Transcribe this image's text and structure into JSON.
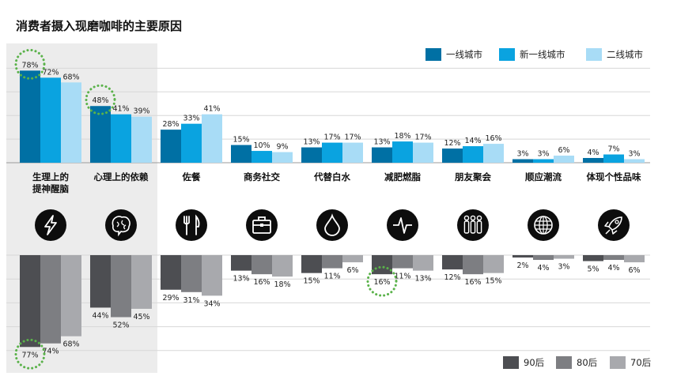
{
  "chart_data": [
    {
      "type": "bar",
      "title": "消费者摄入现磨咖啡的主要原因",
      "categories": [
        "生理上的提神醒脑",
        "心理上的依赖",
        "佐餐",
        "商务社交",
        "代替白水",
        "减肥燃脂",
        "朋友聚会",
        "顺应潮流",
        "体现个性品味"
      ],
      "category_lines": [
        [
          "生理上的",
          "提神醒脑"
        ],
        [
          "心理上的依赖"
        ],
        [
          "佐餐"
        ],
        [
          "商务社交"
        ],
        [
          "代替白水"
        ],
        [
          "减肥燃脂"
        ],
        [
          "朋友聚会"
        ],
        [
          "顺应潮流"
        ],
        [
          "体现个性品味"
        ]
      ],
      "unit": "%",
      "ylim": [
        0,
        80
      ],
      "grid": true,
      "legend_position": "top-right",
      "series": [
        {
          "name": "一线城市",
          "color": "#0070a4",
          "values": [
            78,
            48,
            28,
            15,
            13,
            13,
            12,
            3,
            4
          ]
        },
        {
          "name": "新一线城市",
          "color": "#0aa3e0",
          "values": [
            72,
            41,
            33,
            10,
            17,
            18,
            14,
            3,
            7
          ]
        },
        {
          "name": "二线城市",
          "color": "#a8dcf6",
          "values": [
            68,
            39,
            41,
            9,
            17,
            17,
            16,
            6,
            3
          ]
        }
      ],
      "highlights": [
        {
          "series": 0,
          "category": 0
        },
        {
          "series": 0,
          "category": 1
        }
      ]
    },
    {
      "type": "bar",
      "orientation": "downward",
      "unit": "%",
      "ylim": [
        0,
        80
      ],
      "grid": true,
      "legend_position": "bottom-right",
      "series": [
        {
          "name": "90后",
          "color": "#4d4e52",
          "values": [
            77,
            44,
            29,
            13,
            15,
            16,
            12,
            2,
            5
          ]
        },
        {
          "name": "80后",
          "color": "#7d7e82",
          "values": [
            74,
            52,
            31,
            16,
            11,
            11,
            16,
            4,
            4
          ]
        },
        {
          "name": "70后",
          "color": "#a8a9ad",
          "values": [
            68,
            45,
            34,
            18,
            6,
            13,
            15,
            3,
            6
          ]
        }
      ],
      "highlights": [
        {
          "series": 0,
          "category": 0
        },
        {
          "series": 0,
          "category": 5
        }
      ]
    }
  ],
  "icons": [
    "lightning-icon",
    "brain-icon",
    "cutlery-icon",
    "briefcase-icon",
    "water-drop-icon",
    "heartbeat-icon",
    "people-group-icon",
    "globe-icon",
    "rocket-icon"
  ],
  "colors": {
    "highlight_panel": "#ececec",
    "grid": "#d7d7d7",
    "icon_disc": "#0d0d0d",
    "highlight_ring": "#5ab24a"
  }
}
